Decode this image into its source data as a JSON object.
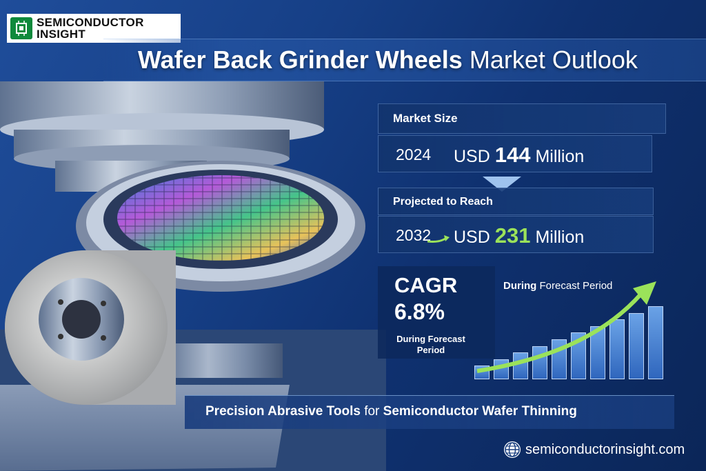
{
  "brand": {
    "line1": "SEMICONDUCTOR",
    "line2": "INSIGHT"
  },
  "title": {
    "bold": "Wafer Back Grinder Wheels",
    "light": "Market Outlook"
  },
  "market_size": {
    "label": "Market Size",
    "year": "2024",
    "currency": "USD",
    "amount": "144",
    "unit": "Million"
  },
  "projection": {
    "label": "Projected to Reach",
    "year": "2032",
    "currency": "USD",
    "amount": "231",
    "unit": "Million"
  },
  "cagr": {
    "label": "CAGR",
    "value": "6.8%",
    "sub": "During Forecast Period"
  },
  "growth_chart": {
    "caption_bold": "During",
    "caption_rest": "Forecast Period",
    "bars": [
      1,
      2,
      3,
      4,
      5,
      6,
      7,
      8,
      9,
      10
    ]
  },
  "tagline": {
    "bold": "Precision Abrasive Tools",
    "rest_1": "for",
    "rest_2": "Semiconductor Wafer Thinning"
  },
  "website": "semiconductorinsight.com",
  "colors": {
    "accent_green": "#9be25a",
    "brand_green": "#0f8a3c",
    "background": "#163f86"
  },
  "icons": [
    "chip-icon",
    "globe-icon",
    "growth-arrow-icon",
    "down-pointer-icon"
  ]
}
